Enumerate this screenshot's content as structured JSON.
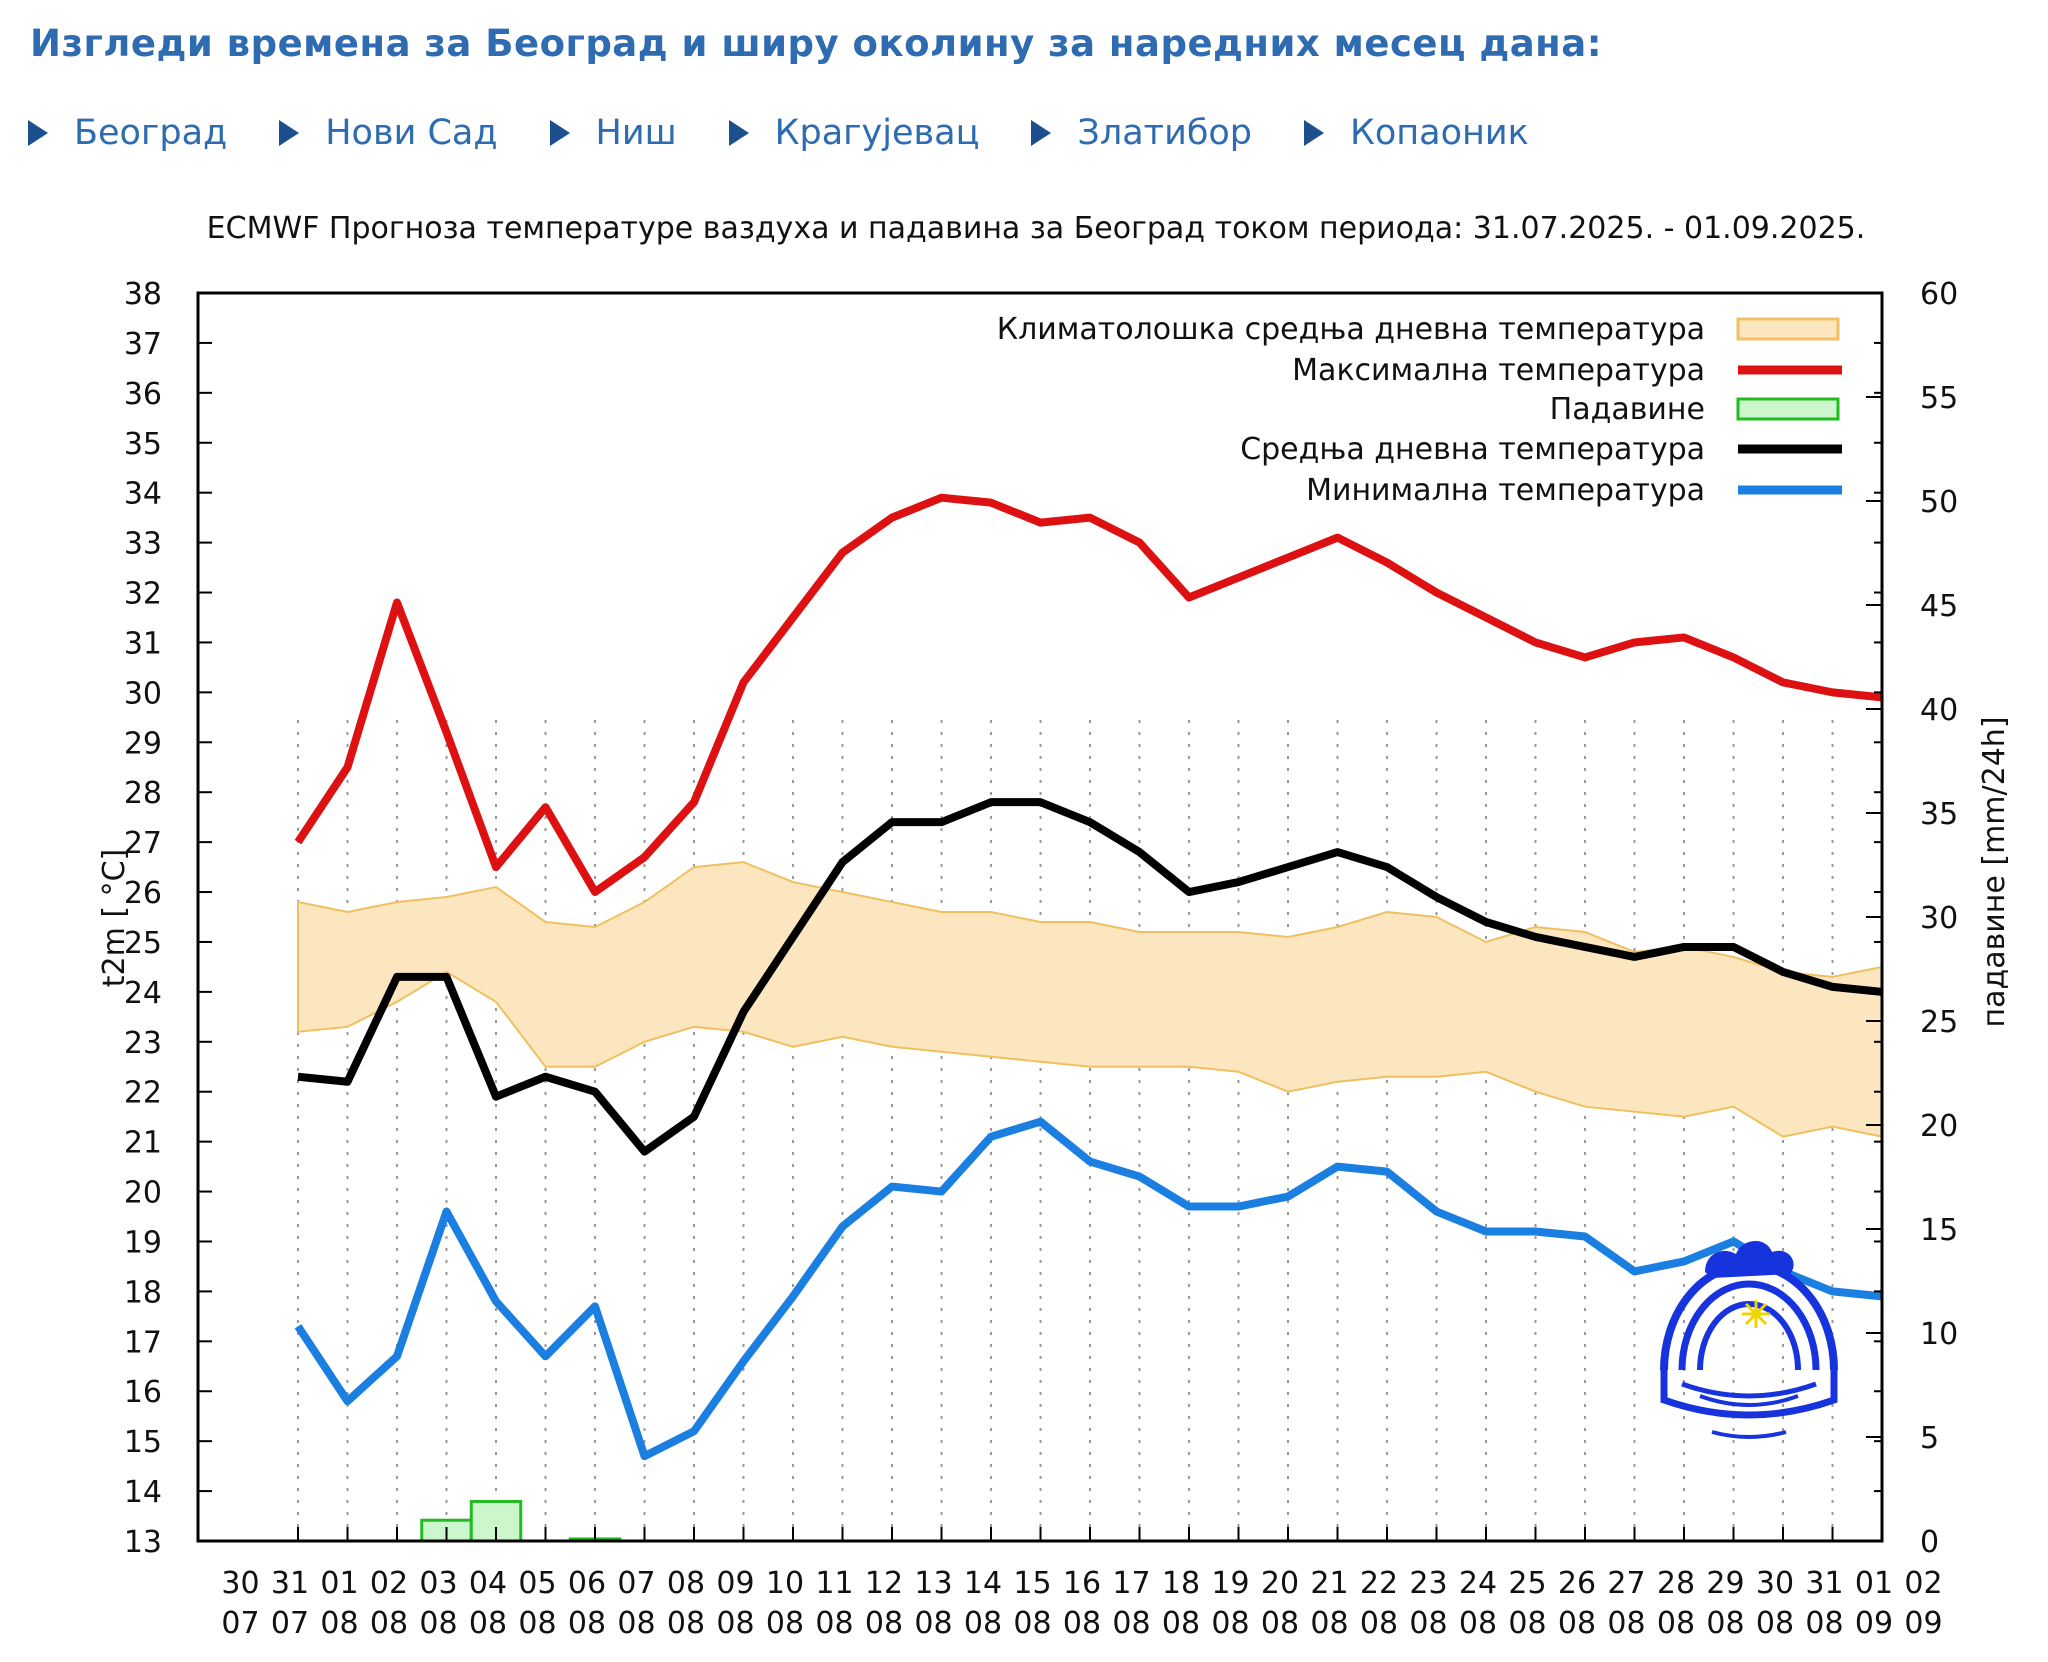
{
  "header": {
    "title": "Изгледи времена за Београд и ширу околину за наредних месец дана:"
  },
  "nav": {
    "items": [
      {
        "label": "Београд"
      },
      {
        "label": "Нови Сад"
      },
      {
        "label": "Ниш"
      },
      {
        "label": "Крагујевац"
      },
      {
        "label": "Златибор"
      },
      {
        "label": "Копаоник"
      }
    ]
  },
  "colors": {
    "link": "#2e6bb0",
    "max_temp": "#dd1111",
    "mean_temp": "#000000",
    "min_temp": "#1a7fe0",
    "precip": "#22bb22",
    "climate_band": "#fbe6bf",
    "climate_edge": "#f0c060"
  },
  "chart_data": {
    "type": "line",
    "title": "ECMWF Прогноза температуре ваздуха и падавина за Београд током периода: 31.07.2025. - 01.09.2025.",
    "ylabel": "t2m [ °C]",
    "y2label": "падавине [mm/24h]",
    "ylim": [
      13,
      38
    ],
    "y2lim": [
      0,
      60
    ],
    "yticks": [
      "13",
      "14",
      "15",
      "16",
      "17",
      "18",
      "19",
      "20",
      "21",
      "22",
      "23",
      "24",
      "25",
      "26",
      "27",
      "28",
      "29",
      "30",
      "31",
      "32",
      "33",
      "34",
      "35",
      "36",
      "37",
      "38"
    ],
    "y2ticks": [
      "0",
      "5",
      "10",
      "15",
      "20",
      "25",
      "30",
      "35",
      "40",
      "45",
      "50",
      "55",
      "60"
    ],
    "xtick_days": [
      "30",
      "31",
      "01",
      "02",
      "03",
      "04",
      "05",
      "06",
      "07",
      "08",
      "09",
      "10",
      "11",
      "12",
      "13",
      "14",
      "15",
      "16",
      "17",
      "18",
      "19",
      "20",
      "21",
      "22",
      "23",
      "24",
      "25",
      "26",
      "27",
      "28",
      "29",
      "30",
      "31",
      "01",
      "02"
    ],
    "xtick_months": [
      "07",
      "07",
      "08",
      "08",
      "08",
      "08",
      "08",
      "08",
      "08",
      "08",
      "08",
      "08",
      "08",
      "08",
      "08",
      "08",
      "08",
      "08",
      "08",
      "08",
      "08",
      "08",
      "08",
      "08",
      "08",
      "08",
      "08",
      "08",
      "08",
      "08",
      "08",
      "08",
      "08",
      "09",
      "09"
    ],
    "x_range": [
      0,
      34
    ],
    "series_x_start": 1,
    "legend": [
      {
        "label": "Климатолошка средња дневна температура",
        "kind": "band"
      },
      {
        "label": "Максимална температура",
        "kind": "max"
      },
      {
        "label": "Падавине",
        "kind": "precip"
      },
      {
        "label": "Средња дневна температура",
        "kind": "mean"
      },
      {
        "label": "Минимална температура",
        "kind": "min"
      }
    ],
    "series": [
      {
        "name": "Максимална температура",
        "key": "max",
        "values": [
          27.0,
          28.5,
          31.8,
          29.2,
          26.5,
          27.7,
          26.0,
          26.7,
          27.8,
          30.2,
          31.5,
          32.8,
          33.5,
          33.9,
          33.8,
          33.4,
          33.5,
          33.0,
          31.9,
          32.3,
          32.7,
          33.1,
          32.6,
          32.0,
          31.5,
          31.0,
          30.7,
          31.0,
          31.1,
          30.7,
          30.2,
          30.0,
          29.9
        ]
      },
      {
        "name": "Средња дневна температура",
        "key": "mean",
        "values": [
          22.3,
          22.2,
          24.3,
          24.3,
          21.9,
          22.3,
          22.0,
          20.8,
          21.5,
          23.6,
          25.1,
          26.6,
          27.4,
          27.4,
          27.8,
          27.8,
          27.4,
          26.8,
          26.0,
          26.2,
          26.5,
          26.8,
          26.5,
          25.9,
          25.4,
          25.1,
          24.9,
          24.7,
          24.9,
          24.9,
          24.4,
          24.1,
          24.0
        ]
      },
      {
        "name": "Минимална температура",
        "key": "min",
        "values": [
          17.3,
          15.8,
          16.7,
          19.6,
          17.8,
          16.7,
          17.7,
          14.7,
          15.2,
          16.6,
          17.9,
          19.3,
          20.1,
          20.0,
          21.1,
          21.4,
          20.6,
          20.3,
          19.7,
          19.7,
          19.9,
          20.5,
          20.4,
          19.6,
          19.2,
          19.2,
          19.1,
          18.4,
          18.6,
          19.0,
          18.4,
          18.0,
          17.9
        ]
      },
      {
        "name": "Климатолошка средња дневна температура (горња граница)",
        "key": "clim_upper",
        "values": [
          25.8,
          25.6,
          25.8,
          25.9,
          26.1,
          25.4,
          25.3,
          25.8,
          26.5,
          26.6,
          26.2,
          26.0,
          25.8,
          25.6,
          25.6,
          25.4,
          25.4,
          25.2,
          25.2,
          25.2,
          25.1,
          25.3,
          25.6,
          25.5,
          25.0,
          25.3,
          25.2,
          24.8,
          24.9,
          24.7,
          24.4,
          24.3,
          24.5
        ]
      },
      {
        "name": "Климатолошка средња дневна температура (доња граница)",
        "key": "clim_lower",
        "values": [
          23.2,
          23.3,
          23.8,
          24.4,
          23.8,
          22.5,
          22.5,
          23.0,
          23.3,
          23.2,
          22.9,
          23.1,
          22.9,
          22.8,
          22.7,
          22.6,
          22.5,
          22.5,
          22.5,
          22.4,
          22.0,
          22.2,
          22.3,
          22.3,
          22.4,
          22.0,
          21.7,
          21.6,
          21.5,
          21.7,
          21.1,
          21.3,
          21.1
        ]
      },
      {
        "name": "Падавине",
        "key": "precip",
        "bars": [
          {
            "x_from": 3.5,
            "x_to": 4.5,
            "value": 1.0
          },
          {
            "x_from": 4.5,
            "x_to": 5.5,
            "value": 1.9
          },
          {
            "x_from": 6.5,
            "x_to": 7.5,
            "value": 0.1
          }
        ]
      }
    ]
  }
}
